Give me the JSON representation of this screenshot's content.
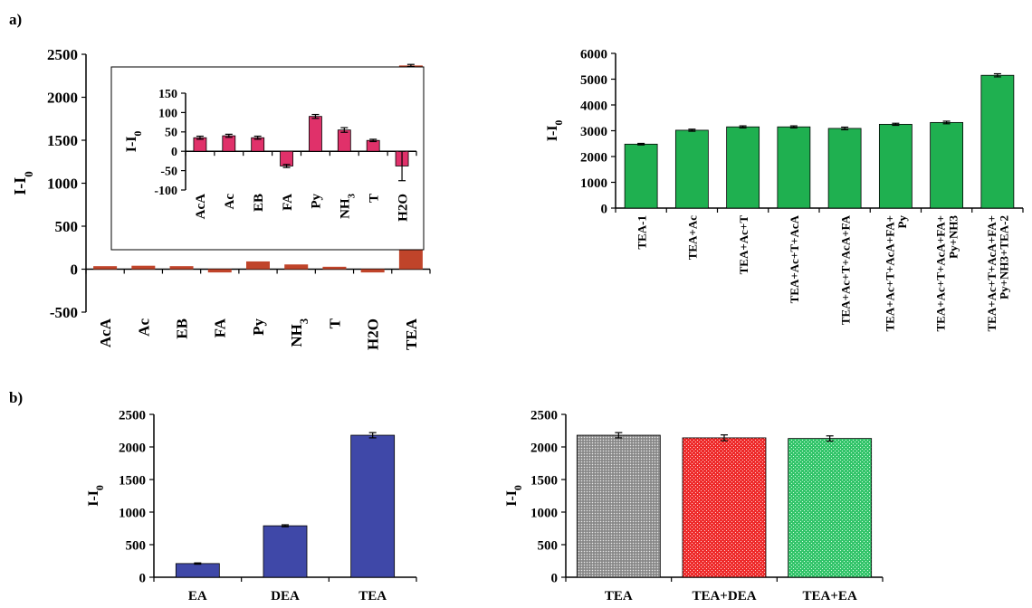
{
  "panel_labels": [
    "a)",
    "b)"
  ],
  "chart_data": [
    {
      "id": "a-main",
      "type": "bar",
      "ylabel": "I-I0",
      "ylim": [
        -500,
        2500
      ],
      "yticks": [
        -500,
        0,
        500,
        1000,
        1500,
        2000,
        2500
      ],
      "categories": [
        "AcA",
        "Ac",
        "EB",
        "FA",
        "Py",
        "NH3",
        "T",
        "H2O",
        "TEA"
      ],
      "values": [
        35,
        40,
        35,
        -38,
        90,
        55,
        28,
        -38,
        2370
      ],
      "errors": [
        0,
        0,
        0,
        0,
        0,
        0,
        0,
        0,
        12
      ],
      "color": "#c0442a",
      "grid": false,
      "legend": "none"
    },
    {
      "id": "a-inset",
      "type": "bar",
      "ylabel": "I-I0",
      "ylim": [
        -100,
        150
      ],
      "yticks": [
        -100,
        -50,
        0,
        50,
        100,
        150
      ],
      "categories": [
        "AcA",
        "Ac",
        "EB",
        "FA",
        "Py",
        "NH3",
        "T",
        "H2O"
      ],
      "values": [
        35,
        40,
        35,
        -38,
        90,
        55,
        28,
        -38
      ],
      "errors": [
        4,
        4,
        4,
        4,
        5,
        6,
        3,
        38
      ],
      "color": "#e0316a",
      "grid": false,
      "legend": "none"
    },
    {
      "id": "a-right",
      "type": "bar",
      "ylabel": "I-I0",
      "ylim": [
        0,
        6000
      ],
      "yticks": [
        0,
        1000,
        2000,
        3000,
        4000,
        5000,
        6000
      ],
      "categories": [
        "TEA-1",
        "TEA+Ac",
        "TEA+Ac+T",
        "TEA+Ac+T+AcA",
        "TEA+Ac+T+AcA+FA",
        "TEA+Ac+T+AcA+FA+ Py",
        "TEA+Ac+T+AcA+FA+ Py+NH3",
        "TEA+Ac+T+AcA+FA+ Py+NH3+TEA-2"
      ],
      "values": [
        2480,
        3020,
        3150,
        3150,
        3090,
        3250,
        3320,
        5150
      ],
      "errors": [
        30,
        40,
        40,
        40,
        50,
        40,
        50,
        60
      ],
      "color": "#1fb050",
      "grid": false,
      "legend": "none"
    },
    {
      "id": "b-left",
      "type": "bar",
      "ylabel": "I-I0",
      "ylim": [
        0,
        2500
      ],
      "yticks": [
        0,
        500,
        1000,
        1500,
        2000,
        2500
      ],
      "categories": [
        "EA",
        "DEA",
        "TEA"
      ],
      "values": [
        210,
        790,
        2180
      ],
      "errors": [
        10,
        15,
        40
      ],
      "color": "#3f48a8",
      "grid": false,
      "legend": "none"
    },
    {
      "id": "b-right",
      "type": "bar",
      "ylabel": "I-I0",
      "ylim": [
        0,
        2500
      ],
      "yticks": [
        0,
        500,
        1000,
        1500,
        2000,
        2500
      ],
      "categories": [
        "TEA",
        "TEA+DEA",
        "TEA+EA"
      ],
      "values": [
        2180,
        2140,
        2130
      ],
      "errors": [
        40,
        45,
        40
      ],
      "colors": [
        "#8c8c8c",
        "#ee2b2b",
        "#33c46a"
      ],
      "grid": false,
      "legend": "none"
    }
  ]
}
